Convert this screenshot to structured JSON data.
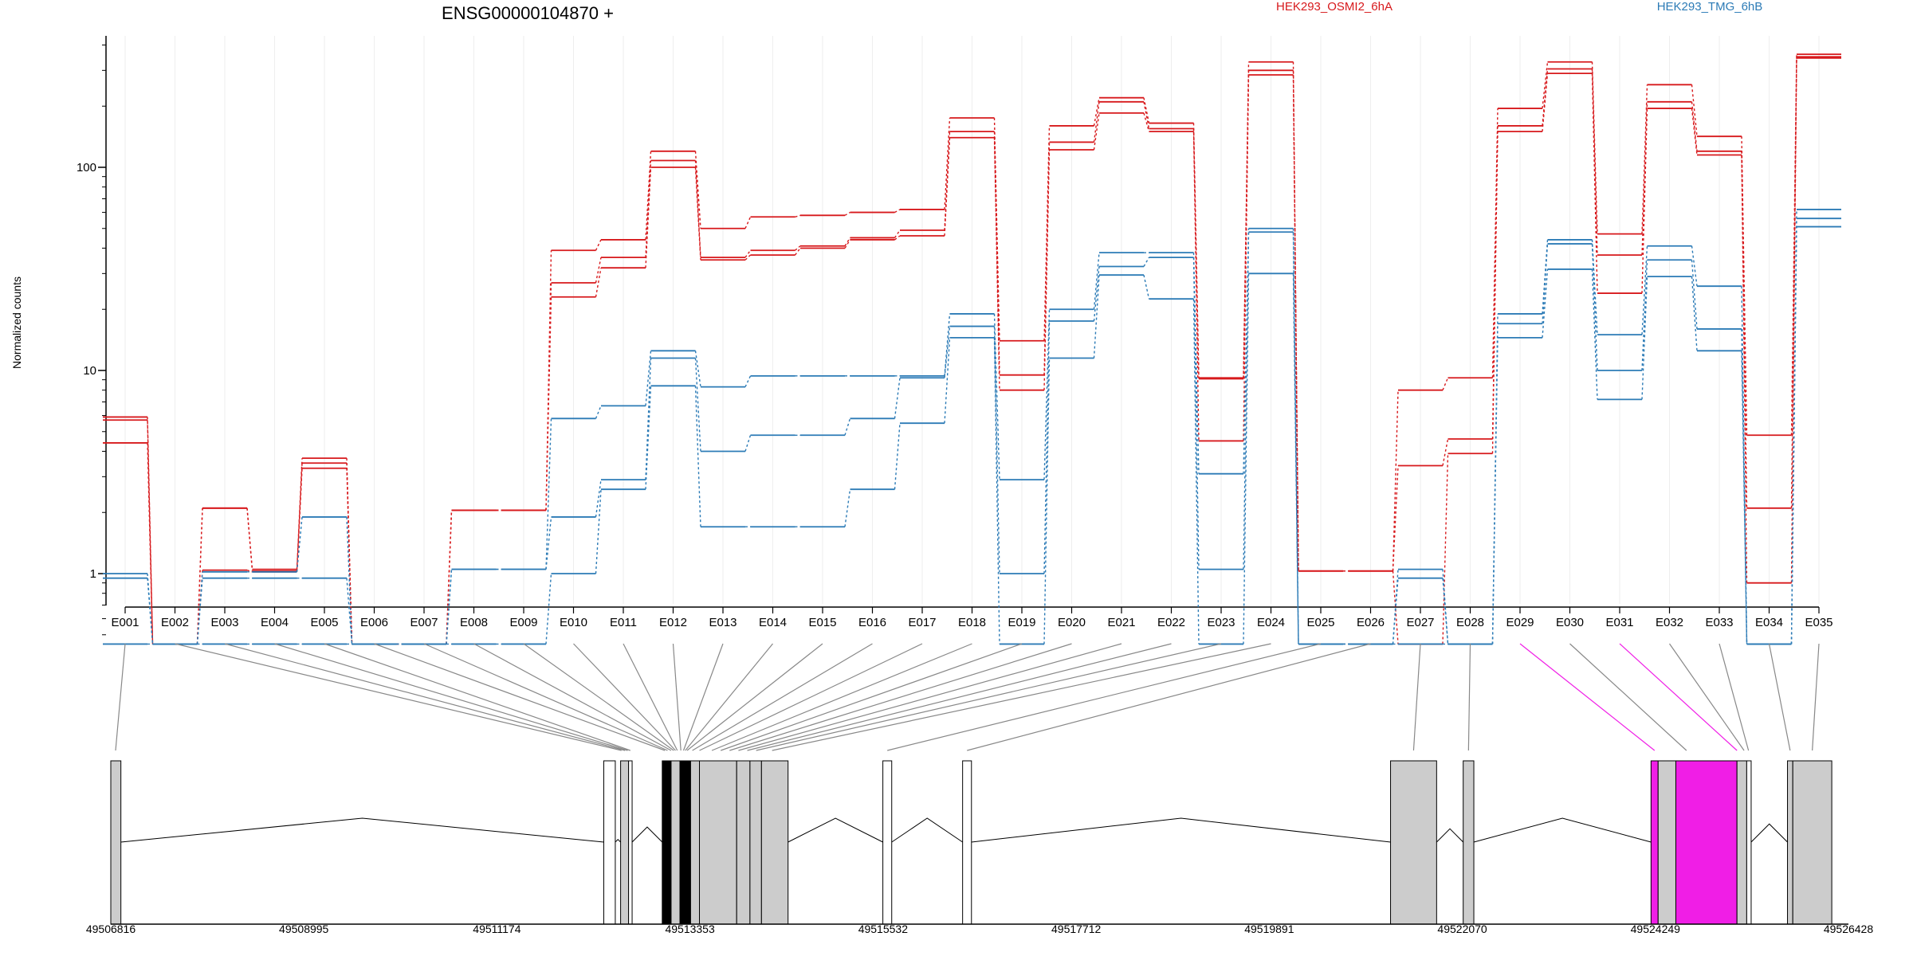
{
  "chart_data": {
    "type": "line",
    "title": "ENSG00000104870 +",
    "ylabel": "Normalized counts",
    "yscale": "log",
    "ylim": [
      0.45,
      450
    ],
    "yticks": [
      1,
      10,
      100
    ],
    "ytick_labels": [
      "1",
      "10",
      "100"
    ],
    "legend": [
      "HEK293_OSMI2_6hA",
      "HEK293_TMG_6hB"
    ],
    "legend_placement": "top-right",
    "colors": {
      "osmi": "#d7191c",
      "tmg": "#2c7bb6",
      "highlight": "#f01ee6",
      "exon": "#cccccc"
    },
    "categories": [
      "E001",
      "E002",
      "E003",
      "E004",
      "E005",
      "E006",
      "E007",
      "E008",
      "E009",
      "E010",
      "E011",
      "E012",
      "E013",
      "E014",
      "E015",
      "E016",
      "E017",
      "E018",
      "E019",
      "E020",
      "E021",
      "E022",
      "E023",
      "E024",
      "E025",
      "E026",
      "E027",
      "E028",
      "E029",
      "E030",
      "E031",
      "E032",
      "E033",
      "E034",
      "E035"
    ],
    "series": [
      {
        "group": "osmi",
        "values": [
          5.9,
          0.45,
          2.1,
          1.05,
          3.7,
          0.45,
          0.45,
          2.05,
          2.05,
          39,
          44,
          120,
          50,
          57,
          58,
          60,
          62,
          175,
          14,
          160,
          220,
          165,
          9.2,
          330,
          1.03,
          1.03,
          8,
          9.2,
          195,
          330,
          47,
          255,
          142,
          4.8,
          360
        ]
      },
      {
        "group": "osmi",
        "values": [
          5.7,
          0.45,
          2.1,
          1.03,
          3.5,
          0.45,
          0.45,
          2.05,
          2.05,
          27,
          36,
          108,
          36,
          39,
          41,
          45,
          49,
          150,
          9.5,
          133,
          210,
          155,
          9.1,
          300,
          1.03,
          1.03,
          3.4,
          4.6,
          160,
          305,
          37,
          210,
          120,
          2.1,
          350
        ]
      },
      {
        "group": "osmi",
        "values": [
          4.4,
          0.45,
          1.04,
          1.02,
          3.3,
          0.45,
          0.45,
          2.05,
          2.05,
          23,
          32,
          100,
          35,
          37,
          40,
          44,
          46,
          140,
          8,
          122,
          185,
          150,
          4.5,
          285,
          1.03,
          1.03,
          0.45,
          3.9,
          150,
          290,
          24,
          195,
          115,
          0.9,
          345
        ]
      },
      {
        "group": "tmg",
        "values": [
          1.0,
          0.45,
          1.02,
          1.02,
          1.9,
          0.45,
          0.45,
          1.05,
          1.05,
          5.8,
          6.7,
          12.5,
          8.3,
          9.4,
          9.4,
          9.4,
          9.4,
          19,
          2.9,
          20,
          38,
          38,
          3.1,
          50,
          0.45,
          0.45,
          1.05,
          0.45,
          19,
          44,
          15,
          41,
          26,
          0.45,
          62
        ]
      },
      {
        "group": "tmg",
        "values": [
          0.95,
          0.45,
          0.95,
          0.95,
          0.95,
          0.45,
          0.45,
          1.05,
          1.05,
          1.9,
          2.9,
          11.5,
          4,
          4.8,
          4.8,
          5.8,
          9.2,
          16.5,
          1.0,
          17.5,
          32.5,
          36,
          1.05,
          48,
          0.45,
          0.45,
          0.95,
          0.45,
          17,
          42,
          10,
          35,
          16,
          0.45,
          56
        ]
      },
      {
        "group": "tmg",
        "values": [
          0.45,
          0.45,
          0.45,
          0.45,
          0.45,
          0.45,
          0.45,
          0.45,
          0.45,
          1.0,
          2.6,
          8.4,
          1.7,
          1.7,
          1.7,
          2.6,
          5.5,
          14.5,
          0.45,
          11.5,
          29.5,
          22.5,
          0.45,
          30,
          0.45,
          0.45,
          0.45,
          0.45,
          14.5,
          31.5,
          7.2,
          29,
          12.5,
          0.45,
          51
        ]
      }
    ],
    "gene_model": {
      "x_ticks": [
        "49506816",
        "49508995",
        "49511174",
        "49513353",
        "49515532",
        "49517712",
        "49519891",
        "49522070",
        "49524249",
        "49526428"
      ],
      "x_range": [
        49506816,
        49526428
      ],
      "exons": [
        {
          "start": 49506816,
          "end": 49506930,
          "fill": "grey"
        },
        {
          "start": 49512380,
          "end": 49512510,
          "fill": "none"
        },
        {
          "start": 49512570,
          "end": 49512660,
          "fill": "grey"
        },
        {
          "start": 49512660,
          "end": 49512700,
          "fill": "none"
        },
        {
          "start": 49513040,
          "end": 49513140,
          "fill": "black"
        },
        {
          "start": 49513140,
          "end": 49513240,
          "fill": "grey"
        },
        {
          "start": 49513240,
          "end": 49513290,
          "fill": "black"
        },
        {
          "start": 49513290,
          "end": 49513360,
          "fill": "black"
        },
        {
          "start": 49513360,
          "end": 49513460,
          "fill": "grey"
        },
        {
          "start": 49513460,
          "end": 49513880,
          "fill": "grey"
        },
        {
          "start": 49513880,
          "end": 49514030,
          "fill": "grey"
        },
        {
          "start": 49514030,
          "end": 49514160,
          "fill": "grey"
        },
        {
          "start": 49514160,
          "end": 49514460,
          "fill": "grey"
        },
        {
          "start": 49515530,
          "end": 49515630,
          "fill": "none"
        },
        {
          "start": 49516430,
          "end": 49516530,
          "fill": "none"
        },
        {
          "start": 49521260,
          "end": 49521780,
          "fill": "grey"
        },
        {
          "start": 49522080,
          "end": 49522200,
          "fill": "grey"
        },
        {
          "start": 49524200,
          "end": 49524280,
          "fill": "magenta"
        },
        {
          "start": 49524280,
          "end": 49524480,
          "fill": "grey"
        },
        {
          "start": 49524480,
          "end": 49525170,
          "fill": "magenta"
        },
        {
          "start": 49525170,
          "end": 49525280,
          "fill": "grey"
        },
        {
          "start": 49525280,
          "end": 49525330,
          "fill": "none"
        },
        {
          "start": 49525740,
          "end": 49525800,
          "fill": "grey"
        },
        {
          "start": 49525800,
          "end": 49526240,
          "fill": "grey"
        }
      ],
      "bin_targets": [
        49506870,
        49512580,
        49512620,
        49512650,
        49512680,
        49513070,
        49513100,
        49513140,
        49513170,
        49513190,
        49513210,
        49513250,
        49513280,
        49513300,
        49513320,
        49513380,
        49513460,
        49513600,
        49513700,
        49513800,
        49513900,
        49514000,
        49514100,
        49514280,
        49515580,
        49516480,
        49521520,
        49522140,
        49524240,
        49524600,
        49525170,
        49525250,
        49525300,
        49525770,
        49526020
      ],
      "highlight_bins": [
        28,
        30
      ]
    }
  }
}
